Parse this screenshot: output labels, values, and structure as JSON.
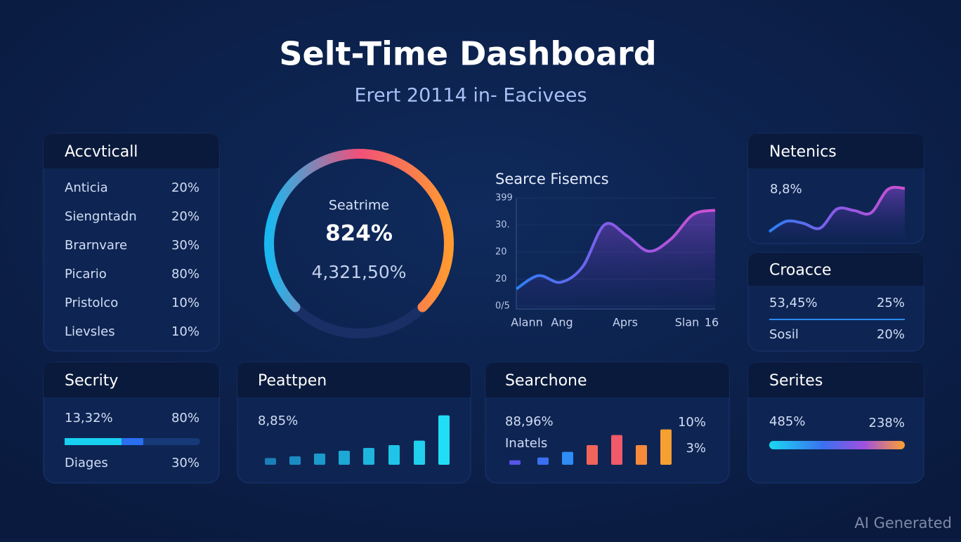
{
  "header": {
    "title": "Selt-Time Dashboard",
    "subtitle": "Erert 20114 in- Eacivees"
  },
  "accounts": {
    "title": "Accvticall",
    "rows": [
      [
        "Anticia",
        "20%"
      ],
      [
        "Siengntadn",
        "20%"
      ],
      [
        "Brarnvare",
        "30%"
      ],
      [
        "Picario",
        "80%"
      ],
      [
        "Pristolco",
        "10%"
      ],
      [
        "Lievsles",
        "10%"
      ]
    ]
  },
  "gauge": {
    "label": "Seatrime",
    "value": "824%",
    "detail": "4,321,50%",
    "progress": 75,
    "max": 100
  },
  "trend": {
    "title": "Searce Fisemcs",
    "yticks": [
      "399",
      "30.",
      "20",
      "20",
      "0/5"
    ],
    "xticks": [
      "Alann",
      "Ang",
      "Aprs",
      "Slan",
      "16"
    ],
    "values": [
      18,
      30,
      24,
      38,
      76,
      66,
      52,
      63,
      85,
      89
    ],
    "ylim": [
      0,
      100
    ]
  },
  "metrics": {
    "title": "Netenics",
    "value": "8,8%",
    "values": [
      3,
      24,
      20,
      10,
      49,
      46,
      41,
      89,
      91
    ],
    "ylim": [
      0,
      100
    ]
  },
  "coverage": {
    "title": "Croacce",
    "rows": [
      [
        "53,45%",
        "25%"
      ],
      [
        "Sosil",
        "20%"
      ]
    ]
  },
  "security": {
    "title": "Secrity",
    "rows": [
      [
        "13,32%",
        "80%"
      ],
      [
        "Diages",
        "30%"
      ]
    ],
    "bar": [
      42,
      16
    ],
    "bar_max": 100
  },
  "peattpen": {
    "title": "Peattpen",
    "value": "8,85%",
    "values": [
      12,
      15,
      20,
      25,
      30,
      35,
      43,
      88
    ],
    "ylim": [
      0,
      100
    ],
    "colors": [
      "#1b7fb8",
      "#1b8cc2",
      "#1c9acc",
      "#1da8d6",
      "#1eb6df",
      "#1fc4e8",
      "#20d0ef",
      "#22ddf6"
    ]
  },
  "searchone": {
    "title": "Searchone",
    "value": "88,96%",
    "label": "Inatels",
    "notes": [
      "10%",
      "3%"
    ],
    "values": [
      8,
      13,
      23,
      35,
      53,
      35,
      63
    ],
    "ylim": [
      0,
      100
    ],
    "colors": [
      "#5a54e8",
      "#3a6ff0",
      "#2f8cf5",
      "#f0645a",
      "#f05a6a",
      "#f58a3a",
      "#f5a030"
    ]
  },
  "series": {
    "title": "Serites",
    "value": "485%",
    "note": "238%"
  },
  "watermark": "AI Generated"
}
